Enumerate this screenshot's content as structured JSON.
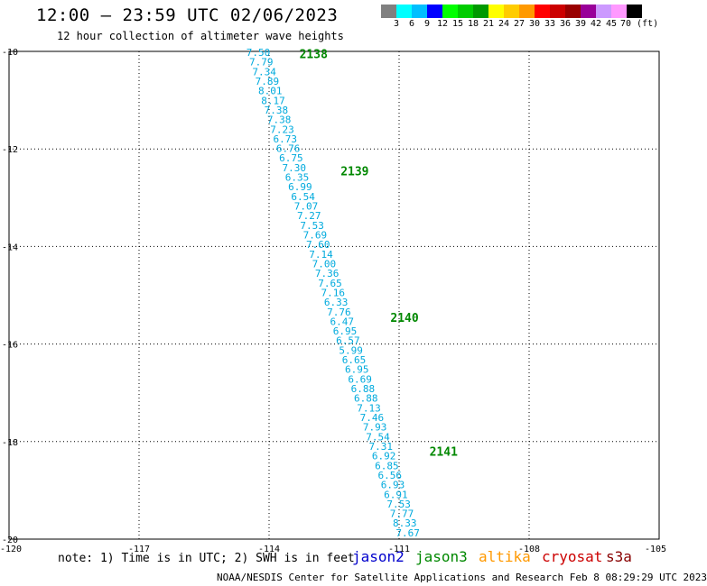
{
  "title": "12:00 – 23:59 UTC 02/06/2023",
  "subtitle": "12 hour collection of altimeter wave heights",
  "color_scale": {
    "colors": [
      "#808080",
      "#00ffff",
      "#00bfff",
      "#0000ff",
      "#00ff00",
      "#00cc00",
      "#009900",
      "#ffff00",
      "#ffcc00",
      "#ff9900",
      "#ff0000",
      "#cc0000",
      "#990000",
      "#990099",
      "#cc99ff",
      "#ff99ff",
      "#000000"
    ],
    "labels": [
      "3",
      "6",
      "9",
      "12",
      "15",
      "18",
      "21",
      "24",
      "27",
      "30",
      "33",
      "36",
      "39",
      "42",
      "45",
      "70 (ft)"
    ]
  },
  "note": "note: 1) Time is in UTC; 2) SWH is in feet",
  "legend": [
    {
      "name": "jason2",
      "color": "#0000cc"
    },
    {
      "name": "jason3",
      "color": "#008800"
    },
    {
      "name": "altika",
      "color": "#ff9900"
    },
    {
      "name": "cryosat",
      "color": "#cc0000"
    },
    {
      "name": "s3a",
      "color": "#880000"
    }
  ],
  "credit": "NOAA/NESDIS Center for Satellite Applications and Research   Feb  8 08:29:29 UTC 2023",
  "chart_data": {
    "type": "scatter",
    "xlim": [
      -120,
      -105
    ],
    "ylim": [
      -20,
      -10
    ],
    "x_ticks": [
      "-120",
      "-117",
      "-114",
      "-111",
      "-108",
      "-105"
    ],
    "y_ticks": [
      "-10",
      "-12",
      "-14",
      "-16",
      "-18",
      "-20"
    ],
    "grid": true,
    "point_color": "#00aadd",
    "pass_label_color": "#008800",
    "track": {
      "start": [
        -114.25,
        -10.0
      ],
      "end": [
        -110.8,
        -19.85
      ],
      "swh_ft": [
        "7.50",
        "7.79",
        "7.34",
        "7.89",
        "8.01",
        "8.17",
        "7.38",
        "7.38",
        "7.23",
        "6.73",
        "6.76",
        "6.75",
        "7.30",
        "6.35",
        "6.99",
        "6.54",
        "7.07",
        "7.27",
        "7.53",
        "7.69",
        "7.60",
        "7.14",
        "7.00",
        "7.36",
        "7.65",
        "7.16",
        "6.33",
        "7.76",
        "6.47",
        "6.95",
        "6.57",
        "5.99",
        "6.65",
        "6.95",
        "6.69",
        "6.88",
        "6.88",
        "7.13",
        "7.46",
        "7.93",
        "7.54",
        "7.31",
        "6.92",
        "6.85",
        "6.56",
        "6.93",
        "6.91",
        "7.53",
        "7.77",
        "8.33",
        "7.67"
      ]
    },
    "pass_labels": [
      {
        "text": "2138",
        "lon": -113.3,
        "lat": -10.05
      },
      {
        "text": "2139",
        "lon": -112.35,
        "lat": -12.45
      },
      {
        "text": "2140",
        "lon": -111.2,
        "lat": -15.45
      },
      {
        "text": "2141",
        "lon": -110.3,
        "lat": -18.2
      }
    ]
  }
}
